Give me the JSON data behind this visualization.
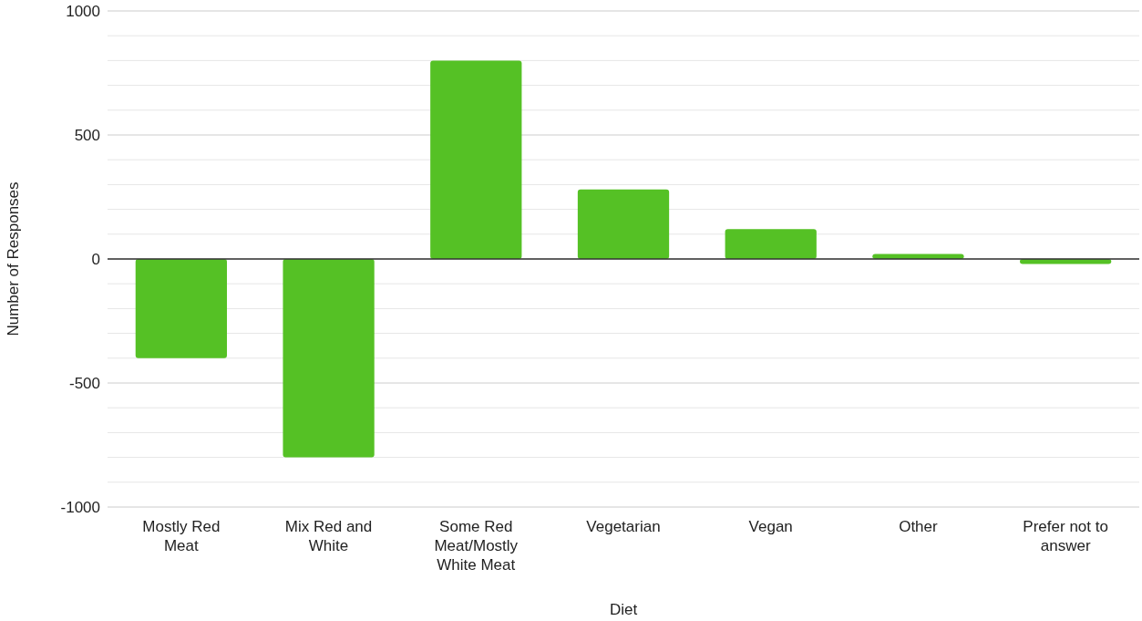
{
  "chart_data": {
    "type": "bar",
    "xlabel": "Diet",
    "ylabel": "Number of Responses",
    "categories": [
      "Mostly Red Meat",
      "Mix Red and White",
      "Some Red Meat/Mostly White Meat",
      "Vegetarian",
      "Vegan",
      "Other",
      "Prefer not to answer"
    ],
    "values": [
      -400,
      -800,
      800,
      280,
      120,
      20,
      -20
    ],
    "color": "#55c125",
    "ylim": [
      -1000,
      1000
    ],
    "yticks": [
      -1000,
      {
        "value": -900,
        "label": null
      },
      {
        "value": -800,
        "label": null
      },
      {
        "value": -700,
        "label": null
      },
      {
        "value": -600,
        "label": null
      },
      -500,
      {
        "value": -400,
        "label": null
      },
      {
        "value": -300,
        "label": null
      },
      {
        "value": -200,
        "label": null
      },
      {
        "value": -100,
        "label": null
      },
      0,
      {
        "value": 100,
        "label": null
      },
      {
        "value": 200,
        "label": null
      },
      {
        "value": 300,
        "label": null
      },
      {
        "value": 400,
        "label": null
      },
      500,
      {
        "value": 600,
        "label": null
      },
      {
        "value": 700,
        "label": null
      },
      {
        "value": 800,
        "label": null
      },
      {
        "value": 900,
        "label": null
      },
      1000
    ],
    "grid": "y"
  }
}
